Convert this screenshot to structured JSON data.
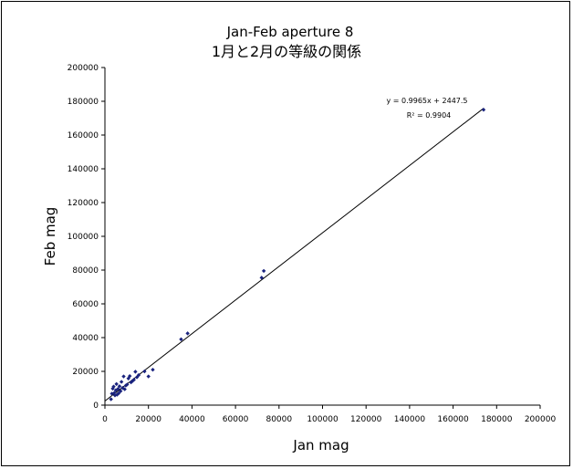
{
  "chart_data": {
    "type": "scatter",
    "title": "Jan-Feb aperture 8",
    "subtitle": "1月と2月の等級の関係",
    "xlabel": "Jan mag",
    "ylabel": "Feb mag",
    "xlim": [
      0,
      200000
    ],
    "ylim": [
      0,
      200000
    ],
    "xticks": [
      "0",
      "20000",
      "40000",
      "60000",
      "80000",
      "100000",
      "120000",
      "140000",
      "160000",
      "180000",
      "200000"
    ],
    "yticks": [
      "0",
      "20000",
      "40000",
      "60000",
      "80000",
      "100000",
      "120000",
      "140000",
      "160000",
      "180000",
      "200000"
    ],
    "grid": false,
    "marker_color": "#1a237e",
    "points": [
      [
        2800,
        3500
      ],
      [
        3200,
        6800
      ],
      [
        3600,
        9800
      ],
      [
        4000,
        11000
      ],
      [
        4300,
        7200
      ],
      [
        4600,
        5800
      ],
      [
        5000,
        8800
      ],
      [
        5300,
        12500
      ],
      [
        5600,
        6200
      ],
      [
        6000,
        9600
      ],
      [
        6300,
        7000
      ],
      [
        6700,
        11200
      ],
      [
        7200,
        8300
      ],
      [
        7600,
        13800
      ],
      [
        8100,
        10200
      ],
      [
        8600,
        17000
      ],
      [
        9100,
        9400
      ],
      [
        9600,
        11600
      ],
      [
        10200,
        12200
      ],
      [
        10800,
        15800
      ],
      [
        11400,
        17200
      ],
      [
        12000,
        13500
      ],
      [
        12600,
        14200
      ],
      [
        13300,
        15000
      ],
      [
        14000,
        19800
      ],
      [
        14700,
        16500
      ],
      [
        15500,
        17800
      ],
      [
        18200,
        20000
      ],
      [
        20000,
        17000
      ],
      [
        22000,
        21000
      ],
      [
        35000,
        39000
      ],
      [
        38000,
        42500
      ],
      [
        72000,
        75500
      ],
      [
        73000,
        79500
      ],
      [
        174000,
        175000
      ]
    ],
    "trendline": {
      "slope": 0.9965,
      "intercept": 2447.5,
      "x_range": [
        0,
        174000
      ],
      "equation": "y = 0.9965x + 2447.5",
      "r2": "R² = 0.9904"
    }
  }
}
